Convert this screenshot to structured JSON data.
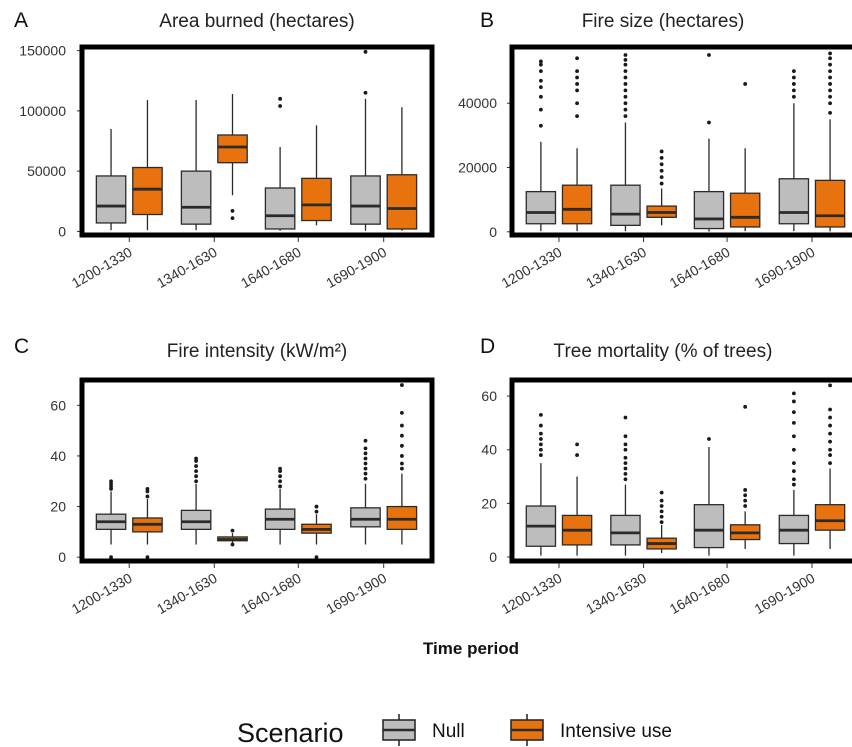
{
  "colors": {
    "null": "#bdbdbd",
    "intensive": "#e8730e",
    "line": "#2b2b2b",
    "frame": "#000000"
  },
  "xaxis_title": "Time period",
  "legend": {
    "title": "Scenario",
    "items": [
      "Null",
      "Intensive use"
    ]
  },
  "chart_data": [
    {
      "type": "box",
      "letter": "A",
      "title": "Area burned (hectares)",
      "categories": [
        "1200-1330",
        "1340-1630",
        "1640-1680",
        "1690-1900"
      ],
      "yticks": [
        0,
        50000,
        100000,
        150000
      ],
      "ylim": [
        -3000,
        153000
      ],
      "series": [
        {
          "name": "Null",
          "boxes": [
            {
              "whislo": 1000,
              "q1": 7000,
              "med": 21000,
              "q3": 46000,
              "whishi": 85000,
              "fliers": []
            },
            {
              "whislo": 1000,
              "q1": 6000,
              "med": 20000,
              "q3": 50000,
              "whishi": 109000,
              "fliers": []
            },
            {
              "whislo": 500,
              "q1": 2000,
              "med": 13000,
              "q3": 36000,
              "whishi": 70000,
              "fliers": [
                104000,
                110000
              ]
            },
            {
              "whislo": 500,
              "q1": 6000,
              "med": 21000,
              "q3": 46000,
              "whishi": 110000,
              "fliers": [
                115000,
                149000
              ]
            }
          ]
        },
        {
          "name": "Intensive use",
          "boxes": [
            {
              "whislo": 1000,
              "q1": 14000,
              "med": 35000,
              "q3": 53000,
              "whishi": 109000,
              "fliers": []
            },
            {
              "whislo": 30000,
              "q1": 57000,
              "med": 70000,
              "q3": 80000,
              "whishi": 114000,
              "fliers": [
                17000,
                11000
              ]
            },
            {
              "whislo": 5000,
              "q1": 9000,
              "med": 22000,
              "q3": 44000,
              "whishi": 88000,
              "fliers": []
            },
            {
              "whislo": 500,
              "q1": 2000,
              "med": 19000,
              "q3": 47000,
              "whishi": 103000,
              "fliers": []
            }
          ]
        }
      ]
    },
    {
      "type": "box",
      "letter": "B",
      "title": "Fire size (hectares)",
      "categories": [
        "1200-1330",
        "1340-1630",
        "1640-1680",
        "1690-1900"
      ],
      "yticks": [
        0,
        20000,
        40000
      ],
      "ylim": [
        -1000,
        57500
      ],
      "series": [
        {
          "name": "Null",
          "boxes": [
            {
              "whislo": 200,
              "q1": 2500,
              "med": 6000,
              "q3": 12500,
              "whishi": 28000,
              "fliers": [
                33000,
                38000,
                42000,
                45000,
                47000,
                50000,
                52000,
                53000
              ]
            },
            {
              "whislo": 200,
              "q1": 2000,
              "med": 5500,
              "q3": 14500,
              "whishi": 34000,
              "fliers": [
                36000,
                38000,
                40000,
                42000,
                44000,
                46000,
                48000,
                50000,
                52000,
                53500,
                55000
              ]
            },
            {
              "whislo": 100,
              "q1": 1000,
              "med": 4000,
              "q3": 12500,
              "whishi": 29000,
              "fliers": [
                34000,
                55000
              ]
            },
            {
              "whislo": 200,
              "q1": 2500,
              "med": 6000,
              "q3": 16500,
              "whishi": 40000,
              "fliers": [
                42000,
                44000,
                46000,
                48000,
                50000
              ]
            }
          ]
        },
        {
          "name": "Intensive use",
          "boxes": [
            {
              "whislo": 200,
              "q1": 2500,
              "med": 7000,
              "q3": 14500,
              "whishi": 26000,
              "fliers": [
                36000,
                40000,
                44000,
                46000,
                48000,
                50000,
                54000
              ]
            },
            {
              "whislo": 2000,
              "q1": 4500,
              "med": 6000,
              "q3": 8000,
              "whishi": 13500,
              "fliers": [
                15000,
                17000,
                19000,
                21000,
                23000,
                25000
              ]
            },
            {
              "whislo": 200,
              "q1": 1500,
              "med": 4500,
              "q3": 12000,
              "whishi": 26000,
              "fliers": [
                46000
              ]
            },
            {
              "whislo": 100,
              "q1": 1500,
              "med": 5000,
              "q3": 16000,
              "whishi": 35000,
              "fliers": [
                37000,
                40000,
                42000,
                44000,
                46000,
                48000,
                50000,
                52000,
                54000,
                55500
              ]
            }
          ]
        }
      ]
    },
    {
      "type": "box",
      "letter": "C",
      "title": "Fire intensity (kW/m²)",
      "categories": [
        "1200-1330",
        "1340-1630",
        "1640-1680",
        "1690-1900"
      ],
      "yticks": [
        0,
        20,
        40,
        60
      ],
      "ylim": [
        -1.5,
        70
      ],
      "series": [
        {
          "name": "Null",
          "boxes": [
            {
              "whislo": 5,
              "q1": 11,
              "med": 14,
              "q3": 17,
              "whishi": 26,
              "fliers": [
                27,
                28,
                29,
                30,
                0
              ]
            },
            {
              "whislo": 5,
              "q1": 11,
              "med": 14,
              "q3": 18.5,
              "whishi": 29,
              "fliers": [
                30,
                32,
                34,
                36,
                38,
                39
              ]
            },
            {
              "whislo": 5,
              "q1": 11,
              "med": 15,
              "q3": 19,
              "whishi": 27,
              "fliers": [
                28,
                30,
                32,
                34,
                35
              ]
            },
            {
              "whislo": 5,
              "q1": 12,
              "med": 15,
              "q3": 19.5,
              "whishi": 29,
              "fliers": [
                31,
                33,
                35,
                37,
                39,
                41,
                43,
                46
              ]
            }
          ]
        },
        {
          "name": "Intensive use",
          "boxes": [
            {
              "whislo": 5,
              "q1": 10,
              "med": 13,
              "q3": 15.5,
              "whishi": 23,
              "fliers": [
                24,
                26,
                27,
                0
              ]
            },
            {
              "whislo": 5.5,
              "q1": 6.5,
              "med": 7,
              "q3": 8,
              "whishi": 9.5,
              "fliers": [
                10.5,
                5
              ]
            },
            {
              "whislo": 5,
              "q1": 9.5,
              "med": 11,
              "q3": 13,
              "whishi": 17,
              "fliers": [
                18,
                20,
                0
              ]
            },
            {
              "whislo": 5,
              "q1": 11,
              "med": 15,
              "q3": 20,
              "whishi": 33,
              "fliers": [
                35,
                37,
                40,
                44,
                48,
                52,
                57,
                68
              ]
            }
          ]
        }
      ]
    },
    {
      "type": "box",
      "letter": "D",
      "title": "Tree mortality (% of trees)",
      "categories": [
        "1200-1330",
        "1340-1630",
        "1640-1680",
        "1690-1900"
      ],
      "yticks": [
        0,
        20,
        40,
        60
      ],
      "ylim": [
        -1.5,
        66
      ],
      "series": [
        {
          "name": "Null",
          "boxes": [
            {
              "whislo": 0.5,
              "q1": 4,
              "med": 11.5,
              "q3": 19,
              "whishi": 35,
              "fliers": [
                38,
                40,
                42,
                44,
                46,
                49,
                53
              ]
            },
            {
              "whislo": 0.5,
              "q1": 4.5,
              "med": 9,
              "q3": 15.5,
              "whishi": 27,
              "fliers": [
                29,
                31,
                33,
                35,
                37,
                40,
                42,
                45,
                52
              ]
            },
            {
              "whislo": 0.5,
              "q1": 3.5,
              "med": 10,
              "q3": 19.5,
              "whishi": 41,
              "fliers": [
                44
              ]
            },
            {
              "whislo": 0.5,
              "q1": 5,
              "med": 10,
              "q3": 15.5,
              "whishi": 25,
              "fliers": [
                27,
                29,
                32,
                35,
                40,
                45,
                50,
                54,
                58,
                61
              ]
            }
          ]
        },
        {
          "name": "Intensive use",
          "boxes": [
            {
              "whislo": 0.5,
              "q1": 4.5,
              "med": 10,
              "q3": 15.5,
              "whishi": 30,
              "fliers": [
                38,
                42
              ]
            },
            {
              "whislo": 1.5,
              "q1": 3,
              "med": 5,
              "q3": 7,
              "whishi": 12,
              "fliers": [
                13,
                15,
                17,
                19,
                21,
                24
              ]
            },
            {
              "whislo": 3,
              "q1": 6.5,
              "med": 9,
              "q3": 12,
              "whishi": 17,
              "fliers": [
                19,
                21,
                23,
                25,
                56
              ]
            },
            {
              "whislo": 3,
              "q1": 10,
              "med": 13.5,
              "q3": 19.5,
              "whishi": 33,
              "fliers": [
                35,
                38,
                40,
                43,
                46,
                49,
                52,
                55,
                64
              ]
            }
          ]
        }
      ]
    }
  ]
}
